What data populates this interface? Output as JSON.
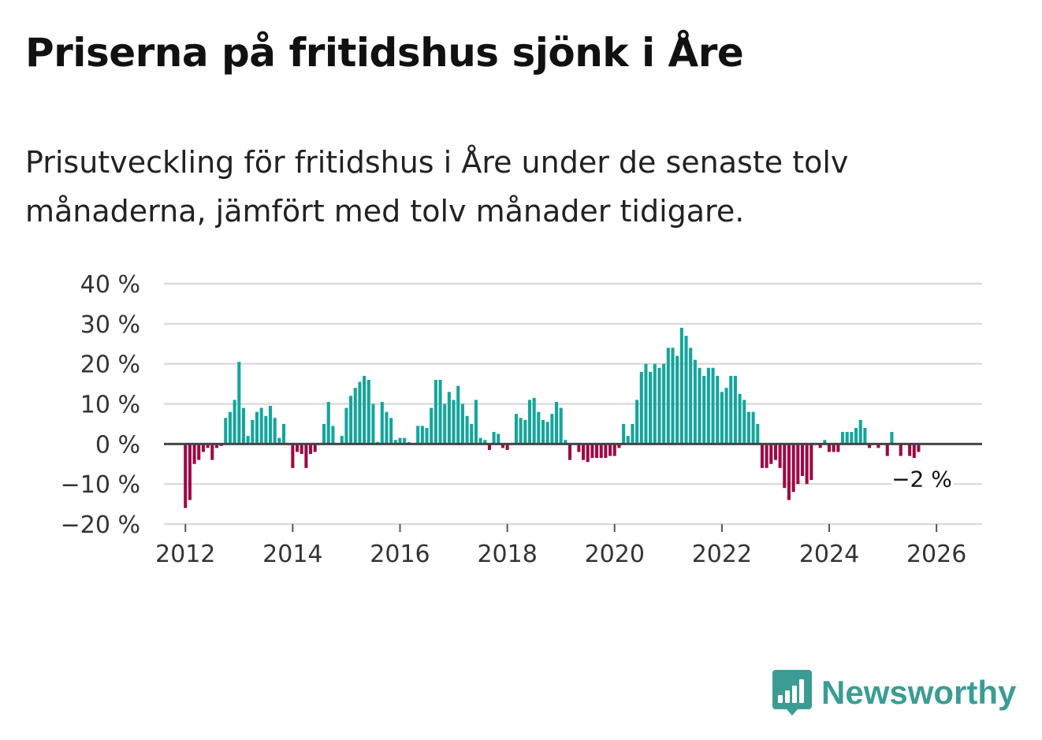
{
  "title": "Priserna på fritidshus sjönk i Åre",
  "subtitle": "Prisutveckling för fritidshus i Åre under de senaste tolv månaderna, jämfört med tolv månader tidigare.",
  "brand": {
    "name": "Newsworthy",
    "logo_icon": "bar-chart-speech-bubble-icon",
    "color": "#3b9c94"
  },
  "chart_data": {
    "type": "bar",
    "title": "Priserna på fritidshus sjönk i Åre",
    "xlabel": "",
    "ylabel": "",
    "ylim": [
      -20,
      40
    ],
    "xlim": [
      2011.6,
      2026.85
    ],
    "y_ticks": [
      40,
      30,
      20,
      10,
      0,
      -10,
      -20
    ],
    "y_tick_labels": [
      "40 %",
      "30 %",
      "20 %",
      "10 %",
      "0 %",
      "−10 %",
      "−20 %"
    ],
    "x_ticks": [
      2012,
      2014,
      2016,
      2018,
      2020,
      2022,
      2024,
      2026
    ],
    "x_tick_labels": [
      "2012",
      "2014",
      "2016",
      "2018",
      "2020",
      "2022",
      "2024",
      "2026"
    ],
    "grid": true,
    "colors": {
      "positive": "#14a59b",
      "negative": "#9c0a45",
      "zero_line": "#444444",
      "grid": "#dcdcdc"
    },
    "start": {
      "year": 2012,
      "month": 1
    },
    "frequency": "monthly",
    "annotation": {
      "text": "−2 %",
      "value": -2,
      "date": "2026-03"
    },
    "values": [
      -16,
      -14,
      -5,
      -4,
      -2,
      -1,
      -4,
      -1,
      -0.5,
      6.5,
      8,
      11,
      20.5,
      9,
      2,
      6,
      8,
      9,
      7,
      9.5,
      6.5,
      1.5,
      5,
      0,
      -6,
      -2,
      -2.5,
      -6,
      -2.5,
      -2,
      0,
      5,
      10.5,
      4.5,
      0,
      2,
      9,
      12,
      14,
      15.5,
      17,
      16,
      10,
      0.5,
      10.5,
      8,
      6.5,
      1,
      1.5,
      1.5,
      0.5,
      0,
      4.5,
      4.5,
      4,
      9,
      16,
      16,
      10,
      13,
      11,
      14.5,
      10,
      7,
      5,
      11,
      1.5,
      1,
      -1.5,
      3,
      2.5,
      -1,
      -1.5,
      0,
      7.5,
      6.5,
      6,
      11,
      11.5,
      8,
      6,
      5.5,
      7.5,
      10.5,
      9,
      1,
      -4,
      0,
      -2,
      -4,
      -4.5,
      -3.5,
      -3.5,
      -3.5,
      -3.5,
      -3,
      -3,
      -1,
      5,
      2,
      5,
      11,
      18,
      20,
      18,
      20,
      19,
      20,
      24,
      24,
      22,
      29,
      27,
      24,
      21,
      19,
      17,
      19,
      19,
      17,
      13,
      14,
      17,
      17,
      12.5,
      11,
      8,
      8,
      5,
      -6,
      -6,
      -5,
      -4,
      -6,
      -11,
      -14,
      -12,
      -10,
      -8,
      -10,
      -9,
      0,
      -1,
      1,
      -2,
      -2,
      -2,
      3,
      3,
      3,
      4,
      6,
      4,
      -1,
      0,
      -1,
      0,
      -3,
      3,
      0,
      -3,
      0,
      -3,
      -3.5,
      -2
    ]
  }
}
